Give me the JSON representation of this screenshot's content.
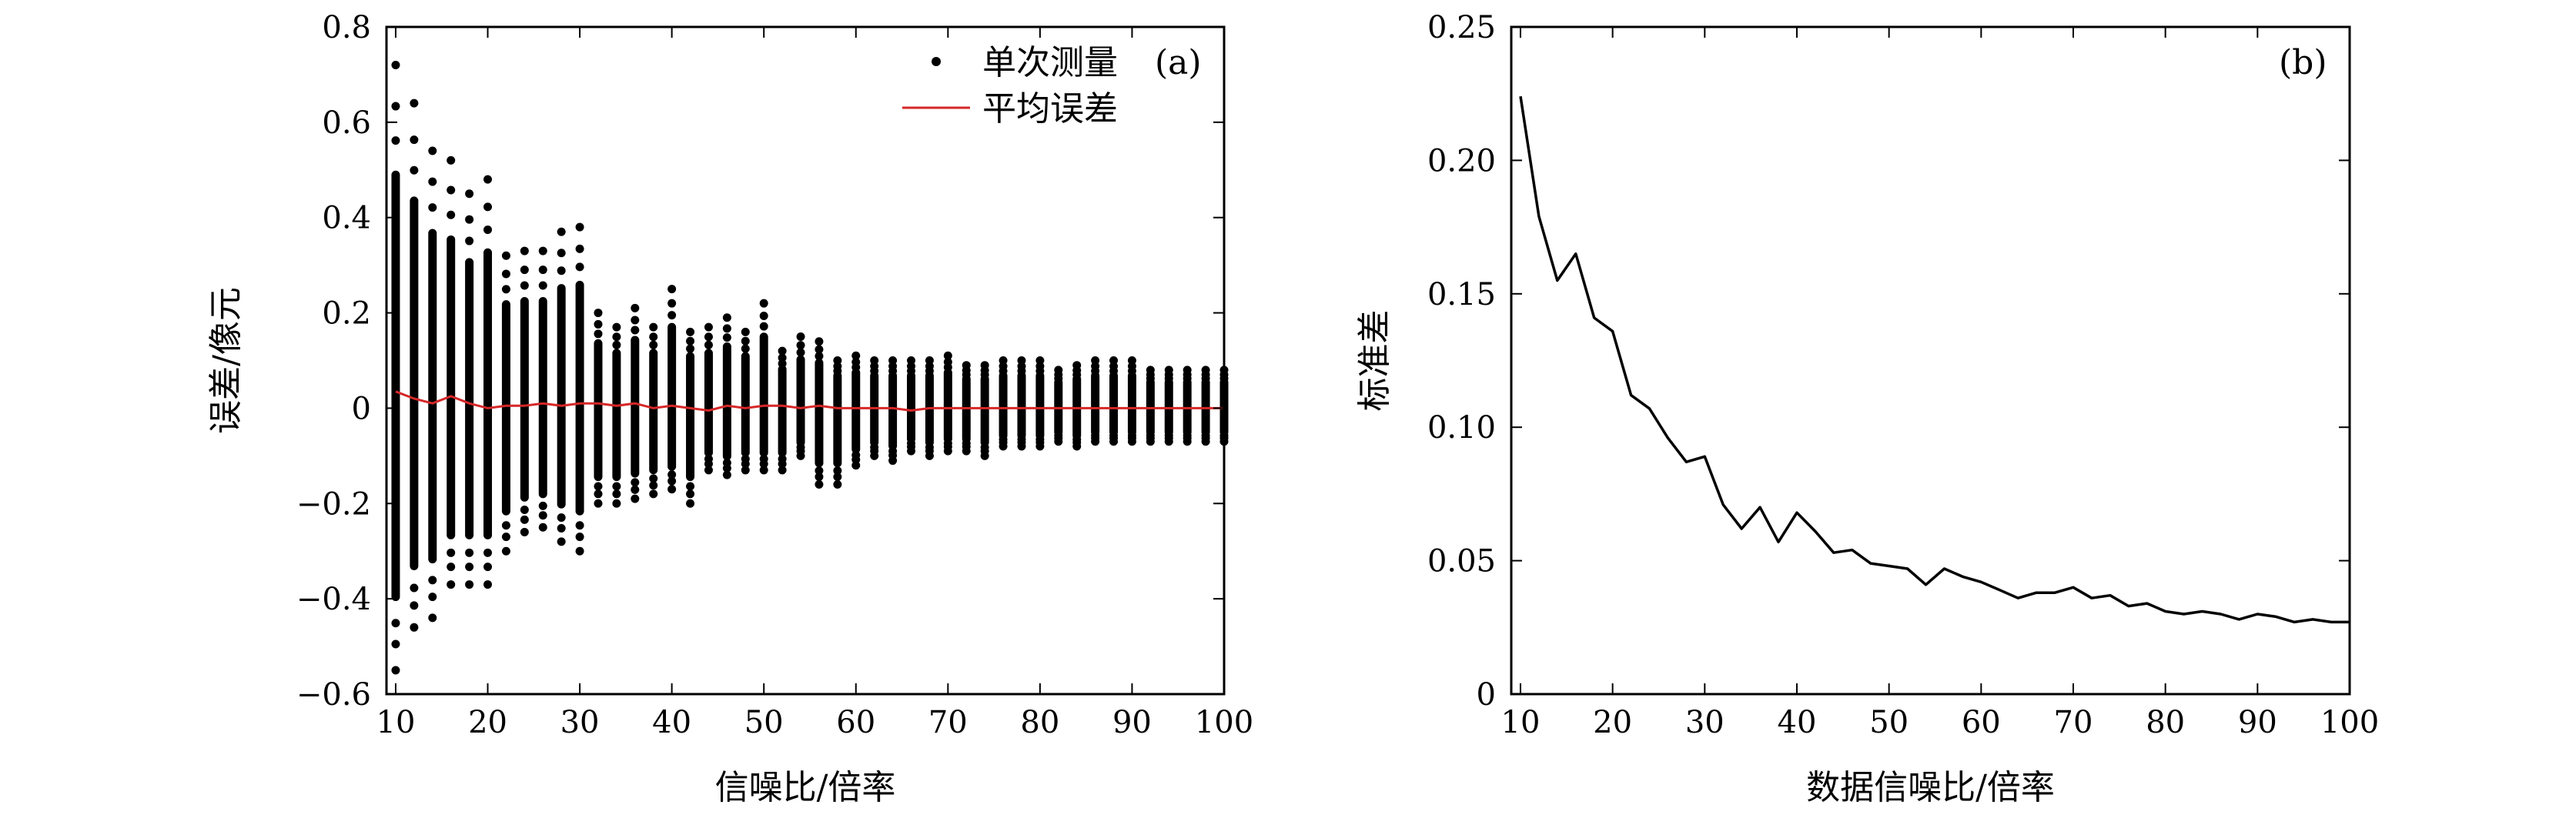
{
  "chart_data": [
    {
      "panel": "a",
      "type": "scatter",
      "panel_label": "(a)",
      "xlabel": "信噪比/倍率",
      "ylabel": "误差/像元",
      "xlim": [
        9,
        100
      ],
      "ylim": [
        -0.6,
        0.8
      ],
      "xticks": [
        10,
        20,
        30,
        40,
        50,
        60,
        70,
        80,
        90,
        100
      ],
      "xtick_labels": [
        "10",
        "20",
        "30",
        "40",
        "50",
        "60",
        "70",
        "80",
        "90",
        "100"
      ],
      "yticks": [
        -0.6,
        -0.4,
        -0.2,
        0,
        0.2,
        0.4,
        0.6,
        0.8
      ],
      "ytick_labels": [
        "−0.6",
        "−0.4",
        "−0.2",
        "0",
        "0.2",
        "0.4",
        "0.6",
        "0.8"
      ],
      "legend": {
        "position": "top-right",
        "entries": [
          "单次测量",
          "平均误差"
        ]
      },
      "colors": {
        "points": "#000000",
        "mean_line": "#d62728"
      },
      "snr": [
        10,
        12,
        14,
        16,
        18,
        20,
        22,
        24,
        26,
        28,
        30,
        32,
        34,
        36,
        38,
        40,
        42,
        44,
        46,
        48,
        50,
        52,
        54,
        56,
        58,
        60,
        62,
        64,
        66,
        68,
        70,
        72,
        74,
        76,
        78,
        80,
        82,
        84,
        86,
        88,
        90,
        92,
        94,
        96,
        98,
        100
      ],
      "series": [
        {
          "name": "单次测量",
          "kind": "points",
          "min_error": [
            -0.55,
            -0.46,
            -0.44,
            -0.37,
            -0.37,
            -0.37,
            -0.3,
            -0.26,
            -0.25,
            -0.28,
            -0.3,
            -0.2,
            -0.2,
            -0.19,
            -0.18,
            -0.17,
            -0.2,
            -0.13,
            -0.14,
            -0.13,
            -0.13,
            -0.13,
            -0.1,
            -0.16,
            -0.16,
            -0.12,
            -0.1,
            -0.11,
            -0.09,
            -0.1,
            -0.09,
            -0.09,
            -0.1,
            -0.08,
            -0.08,
            -0.08,
            -0.07,
            -0.08,
            -0.07,
            -0.07,
            -0.07,
            -0.07,
            -0.07,
            -0.07,
            -0.07,
            -0.07
          ],
          "max_error": [
            0.72,
            0.64,
            0.54,
            0.52,
            0.45,
            0.48,
            0.32,
            0.33,
            0.33,
            0.37,
            0.38,
            0.2,
            0.17,
            0.21,
            0.17,
            0.25,
            0.16,
            0.17,
            0.19,
            0.16,
            0.22,
            0.12,
            0.15,
            0.14,
            0.1,
            0.11,
            0.1,
            0.1,
            0.1,
            0.1,
            0.11,
            0.09,
            0.09,
            0.1,
            0.1,
            0.1,
            0.08,
            0.09,
            0.1,
            0.1,
            0.1,
            0.08,
            0.08,
            0.08,
            0.08,
            0.08
          ]
        },
        {
          "name": "平均误差",
          "kind": "line",
          "values": [
            0.035,
            0.02,
            0.01,
            0.025,
            0.01,
            0.0,
            0.005,
            0.005,
            0.01,
            0.005,
            0.01,
            0.01,
            0.005,
            0.01,
            0.0,
            0.005,
            0.0,
            -0.005,
            0.005,
            0.0,
            0.005,
            0.005,
            0.0,
            0.005,
            0.0,
            0.0,
            0.0,
            0.0,
            -0.005,
            0.0,
            0.0,
            0.0,
            0.0,
            0.0,
            0.0,
            0.0,
            0.0,
            0.0,
            0.0,
            0.0,
            0.0,
            0.0,
            0.0,
            0.0,
            0.0,
            0.0
          ]
        }
      ]
    },
    {
      "panel": "b",
      "type": "line",
      "panel_label": "(b)",
      "xlabel": "数据信噪比/倍率",
      "ylabel": "标准差",
      "xlim": [
        9,
        100
      ],
      "ylim": [
        0,
        0.25
      ],
      "xticks": [
        10,
        20,
        30,
        40,
        50,
        60,
        70,
        80,
        90,
        100
      ],
      "xtick_labels": [
        "10",
        "20",
        "30",
        "40",
        "50",
        "60",
        "70",
        "80",
        "90",
        "100"
      ],
      "yticks": [
        0,
        0.05,
        0.1,
        0.15,
        0.2,
        0.25
      ],
      "ytick_labels": [
        "0",
        "0.05",
        "0.10",
        "0.15",
        "0.20",
        "0.25"
      ],
      "colors": {
        "line": "#000000"
      },
      "x": [
        10,
        12,
        14,
        16,
        18,
        20,
        22,
        24,
        26,
        28,
        30,
        32,
        34,
        36,
        38,
        40,
        42,
        44,
        46,
        48,
        50,
        52,
        54,
        56,
        58,
        60,
        62,
        64,
        66,
        68,
        70,
        72,
        74,
        76,
        78,
        80,
        82,
        84,
        86,
        88,
        90,
        92,
        94,
        96,
        98,
        100
      ],
      "series": [
        {
          "name": "标准差",
          "values": [
            0.224,
            0.179,
            0.155,
            0.165,
            0.141,
            0.136,
            0.112,
            0.107,
            0.096,
            0.087,
            0.089,
            0.071,
            0.062,
            0.07,
            0.057,
            0.068,
            0.061,
            0.053,
            0.054,
            0.049,
            0.048,
            0.047,
            0.041,
            0.047,
            0.044,
            0.042,
            0.039,
            0.036,
            0.038,
            0.038,
            0.04,
            0.036,
            0.037,
            0.033,
            0.034,
            0.031,
            0.03,
            0.031,
            0.03,
            0.028,
            0.03,
            0.029,
            0.027,
            0.028,
            0.027,
            0.027
          ]
        }
      ]
    }
  ]
}
